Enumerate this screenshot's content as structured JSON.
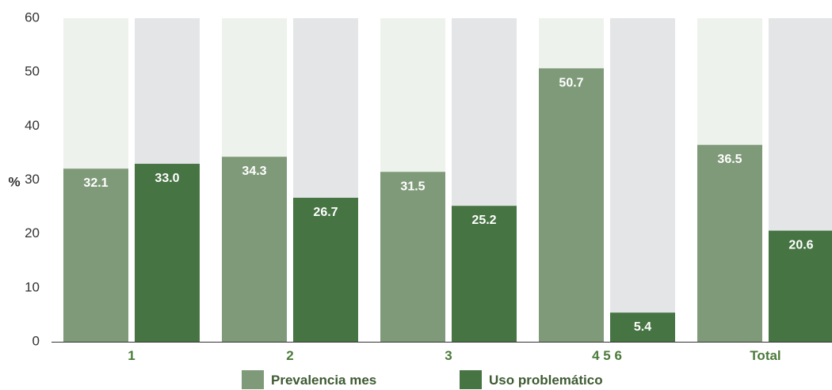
{
  "chart_data": {
    "type": "bar",
    "ylabel": "%",
    "ylim": [
      0,
      60
    ],
    "yticks": [
      0,
      10,
      20,
      30,
      40,
      50,
      60
    ],
    "categories": [
      "1",
      "2",
      "3",
      "4 5 6",
      "Total"
    ],
    "series": [
      {
        "name": "Prevalencia mes",
        "values": [
          32.1,
          34.3,
          31.5,
          50.7,
          36.5
        ]
      },
      {
        "name": "Uso problemático",
        "values": [
          33.0,
          26.7,
          25.2,
          5.4,
          20.6
        ]
      }
    ],
    "data_labels": [
      [
        "32.1",
        "34.3",
        "31.5",
        "50.7",
        "36.5"
      ],
      [
        "33.0",
        "26.7",
        "25.2",
        "5.4",
        "20.6"
      ]
    ],
    "grid": false,
    "legend_position": "bottom-center"
  },
  "colors": {
    "series": [
      "#7f9a79",
      "#467443"
    ],
    "background_tracks": [
      "#eef2ec",
      "#e4e5e7"
    ],
    "axis": "#333333",
    "tick_text": "#333333",
    "category_text": "#4a7a3a",
    "legend_text": "#3e5a33"
  }
}
